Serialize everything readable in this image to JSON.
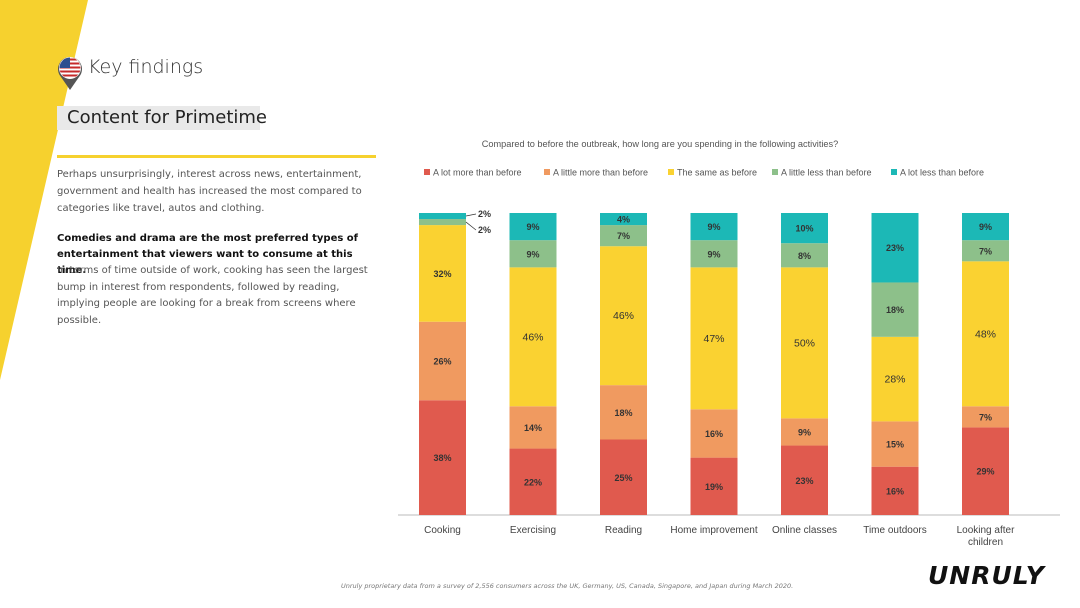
{
  "header": {
    "title": "Key findings",
    "subtitle": "Content for Primetime",
    "flag_icon": "us-flag-pin-icon"
  },
  "body_text": {
    "para1": "Perhaps unsurprisingly, interest across news, entertainment, government and health has increased the most compared to categories like travel, autos and clothing.",
    "para2": "Comedies and drama are the most preferred types of entertainment that viewers want to consume at this time.",
    "para3": "In terms of time outside of work, cooking has seen the largest bump in interest from respondents, followed by reading, implying people are looking for a break from screens where possible."
  },
  "footnote": "Unruly proprietary data from a survey of 2,556 consumers across the UK, Germany, US, Canada, Singapore, and Japan during March 2020.",
  "logo": "UNRULY",
  "colors": {
    "accent_yellow": "#F6D12E"
  },
  "chart_data": {
    "type": "bar",
    "stacked": true,
    "title": "Compared to before the outbreak, how long are you spending in the following activities?",
    "categories": [
      [
        "Cooking"
      ],
      [
        "Exercising"
      ],
      [
        "Reading"
      ],
      [
        "Home improvement"
      ],
      [
        "Online classes"
      ],
      [
        "Time outdoors"
      ],
      [
        "Looking after",
        "children"
      ]
    ],
    "series": [
      {
        "name": "A lot more than before",
        "color": "#E05A4E",
        "values": [
          38,
          22,
          25,
          19,
          23,
          16,
          29
        ],
        "labels": [
          "38%",
          "22%",
          "25%",
          "19%",
          "23%",
          "16%",
          "29%"
        ]
      },
      {
        "name": "A little more than before",
        "color": "#F09A60",
        "values": [
          26,
          14,
          18,
          16,
          9,
          15,
          7
        ],
        "labels": [
          "26%",
          "14%",
          "18%",
          "16%",
          "9%",
          "15%",
          "7%"
        ]
      },
      {
        "name": "The same as before",
        "color": "#FAD231",
        "values": [
          32,
          46,
          46,
          47,
          50,
          28,
          48
        ],
        "labels": [
          "32%",
          "46%",
          "46%",
          "47%",
          "50%",
          "28%",
          "48%"
        ]
      },
      {
        "name": "A little less than before",
        "color": "#8DC08A",
        "values": [
          2,
          9,
          7,
          9,
          8,
          18,
          7
        ],
        "labels": [
          "2%",
          "9%",
          "7%",
          "9%",
          "8%",
          "18%",
          "7%"
        ]
      },
      {
        "name": "A lot less than before",
        "color": "#1CB8B6",
        "values": [
          2,
          9,
          4,
          9,
          10,
          23,
          9
        ],
        "labels": [
          "2%",
          "9%",
          "4%",
          "9%",
          "10%",
          "23%",
          "9%"
        ]
      }
    ],
    "ylim": [
      0,
      100
    ]
  }
}
